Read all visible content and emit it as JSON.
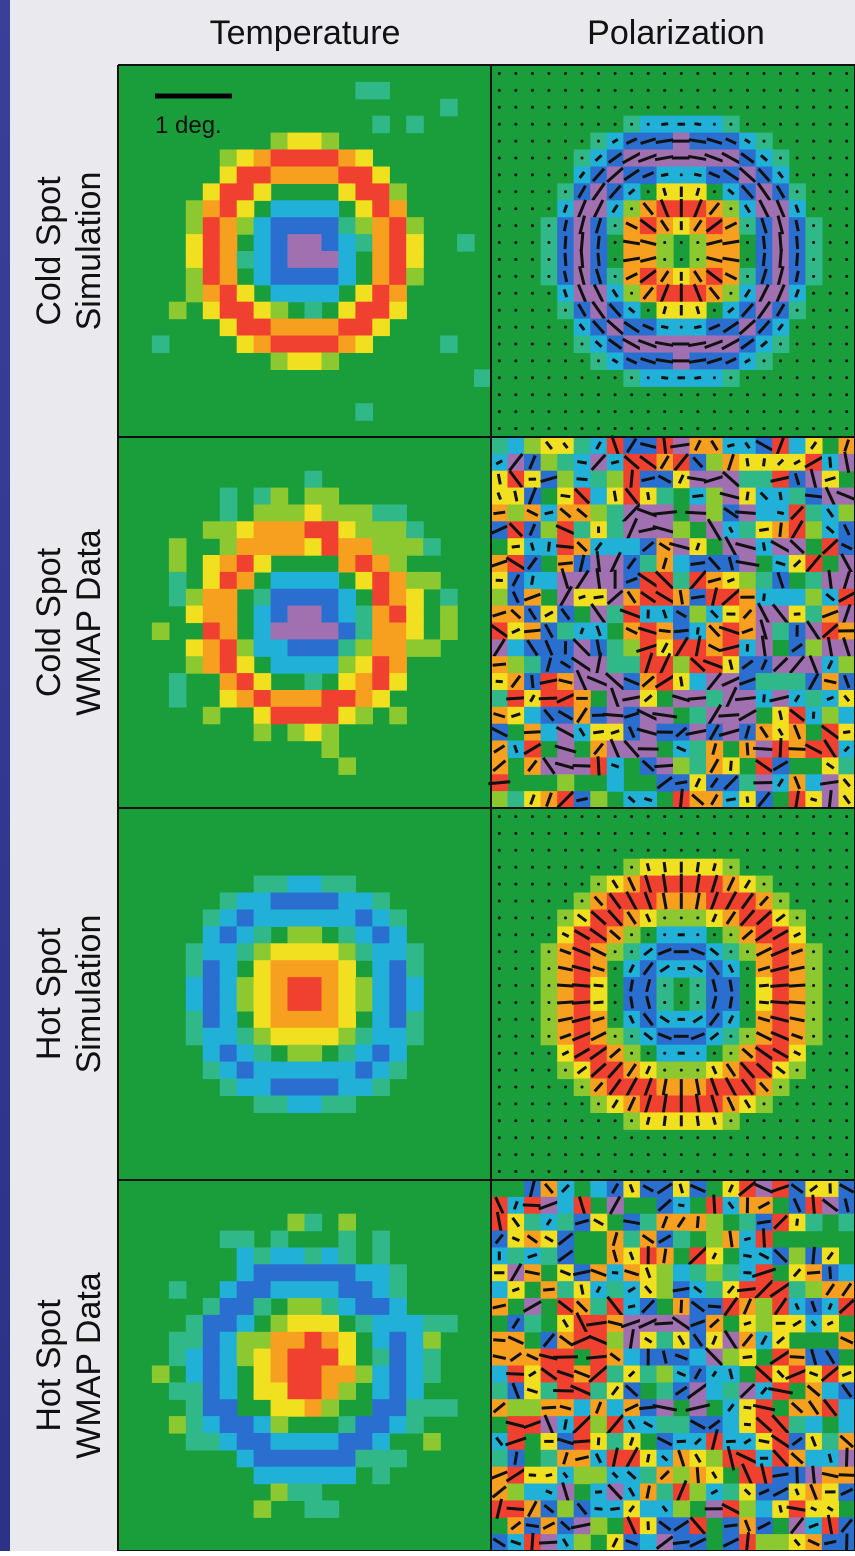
{
  "header": {
    "columns": [
      "Temperature",
      "Polarization"
    ]
  },
  "rows": [
    {
      "line1": "Cold Spot",
      "line2": "Simulation"
    },
    {
      "line1": "Cold Spot",
      "line2": "WMAP Data"
    },
    {
      "line1": "Hot Spot",
      "line2": "Simulation"
    },
    {
      "line1": "Hot Spot",
      "line2": "WMAP Data"
    }
  ],
  "scale_label": "1 deg."
}
